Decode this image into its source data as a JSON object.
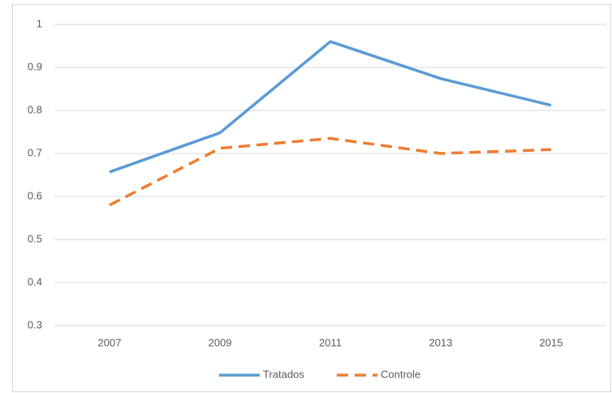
{
  "chart_data": {
    "type": "line",
    "categories": [
      "2007",
      "2009",
      "2011",
      "2013",
      "2015"
    ],
    "series": [
      {
        "name": "Tratados",
        "color": "#5b9bd5",
        "line_style": "solid",
        "values": [
          0.657,
          0.748,
          0.96,
          0.874,
          0.812
        ]
      },
      {
        "name": "Controle",
        "color": "#ed7d31",
        "line_style": "dashed",
        "values": [
          0.58,
          0.712,
          0.735,
          0.7,
          0.709
        ]
      }
    ],
    "ylim": [
      0.3,
      1
    ],
    "yticks": [
      0.3,
      0.4,
      0.5,
      0.6,
      0.7,
      0.8,
      0.9,
      1
    ],
    "grid": true,
    "legend": "bottom"
  }
}
